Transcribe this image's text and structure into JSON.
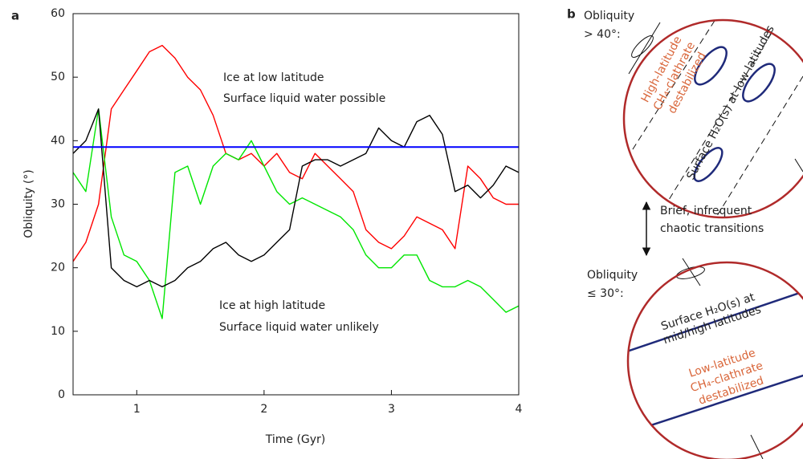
{
  "chart_data": {
    "type": "line",
    "panel_label": "a",
    "x_label": "Time (Gyr)",
    "y_label": "Obliquity (°)",
    "xlim": [
      0.5,
      4
    ],
    "xticks": [
      1,
      2,
      3,
      4
    ],
    "ylim": [
      0,
      60
    ],
    "yticks": [
      0,
      10,
      20,
      30,
      40,
      50,
      60
    ],
    "x": [
      0.5,
      0.6,
      0.7,
      0.8,
      0.9,
      1.0,
      1.1,
      1.2,
      1.3,
      1.4,
      1.5,
      1.6,
      1.7,
      1.8,
      1.9,
      2.0,
      2.1,
      2.2,
      2.3,
      2.4,
      2.5,
      2.6,
      2.7,
      2.8,
      2.9,
      3.0,
      3.1,
      3.2,
      3.3,
      3.4,
      3.5,
      3.6,
      3.7,
      3.8,
      3.9,
      4.0
    ],
    "series": [
      {
        "color": "#ff0000",
        "values": [
          21,
          24,
          30,
          45,
          48,
          51,
          54,
          55,
          53,
          50,
          48,
          44,
          38,
          37,
          38,
          36,
          38,
          35,
          34,
          38,
          36,
          34,
          32,
          26,
          24,
          23,
          25,
          28,
          27,
          26,
          23,
          36,
          34,
          31,
          30,
          30
        ]
      },
      {
        "color": "#00e600",
        "values": [
          35,
          32,
          45,
          28,
          22,
          21,
          18,
          12,
          35,
          36,
          30,
          36,
          38,
          37,
          40,
          36,
          32,
          30,
          31,
          30,
          29,
          28,
          26,
          22,
          20,
          20,
          22,
          22,
          18,
          17,
          17,
          18,
          17,
          15,
          13,
          14
        ]
      },
      {
        "color": "#000000",
        "values": [
          38,
          40,
          45,
          20,
          18,
          17,
          18,
          17,
          18,
          20,
          21,
          23,
          24,
          22,
          21,
          22,
          24,
          26,
          36,
          37,
          37,
          36,
          37,
          38,
          42,
          40,
          39,
          43,
          44,
          41,
          32,
          33,
          31,
          33,
          36,
          35
        ]
      }
    ],
    "hlines": [
      {
        "value": 39,
        "color": "#0000ff"
      }
    ],
    "annotations": [
      "Ice at low latitude",
      "Surface liquid water possible",
      "Ice at high latitude",
      "Surface liquid water unlikely"
    ]
  },
  "diagram": {
    "panel_label": "b",
    "top": {
      "obliquity": "Obliquity",
      "condition": "> 40°:",
      "clathrate": [
        "High-latitude",
        "CH₄-clathrate",
        "destabilized"
      ],
      "ice": "Surface H₂O(s) at low latitudes"
    },
    "transition": [
      "Brief, infrequent",
      "chaotic transitions"
    ],
    "bottom": {
      "obliquity": "Obliquity",
      "condition": "≤ 30°:",
      "ice": [
        "Surface H₂O(s) at",
        "mid/high latitudes"
      ],
      "clathrate": [
        "Low-latitude",
        "CH₄-clathrate",
        "destabilized"
      ]
    }
  }
}
